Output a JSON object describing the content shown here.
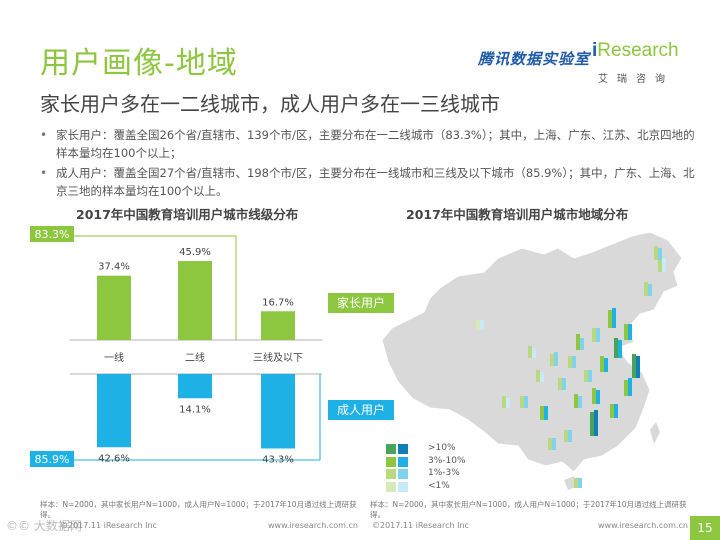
{
  "header": {
    "title": "用户画像-地域",
    "partner": "腾讯数据实验室",
    "brand_i": "i",
    "brand_rest": "Research",
    "brand_cn": "艾瑞咨询"
  },
  "subtitle": "家长用户多在一二线城市，成人用户多在一三线城市",
  "bullets": [
    "家长用户：覆盖全国26个省/直辖市、139个市/区，主要分布在一二线城市（83.3%）；其中，上海、广东、江苏、北京四地的样本量均在100个以上；",
    "成人用户：覆盖全国27个省/直辖市、198个市/区，主要分布在一线城市和三线及以下城市（85.9%）；其中，广东、上海、北京三地的样本量均在100个以上。"
  ],
  "colors": {
    "brand_green": "#8dc63f",
    "adult_blue": "#1eb1e6",
    "map_gray": "#d9d9d9",
    "legend": [
      "#4aa35b",
      "#8dc63f",
      "#b8d97e",
      "#d7e9b6"
    ],
    "legend_blue": [
      "#0f7fb8",
      "#1eb1e6",
      "#7fd3ef",
      "#c6eaf7"
    ]
  },
  "chart_data": [
    {
      "type": "bar",
      "title": "2017年中国教育培训用户城市线级分布",
      "categories": [
        "一线",
        "二线",
        "三线及以下"
      ],
      "series": [
        {
          "name": "家长用户",
          "values": [
            37.4,
            45.9,
            16.7
          ],
          "labels": [
            "37.4%",
            "45.9%",
            "16.7%"
          ]
        },
        {
          "name": "成人用户",
          "values": [
            42.6,
            14.1,
            43.3
          ],
          "labels": [
            "42.6%",
            "14.1%",
            "43.3%"
          ]
        }
      ],
      "bracket_labels": {
        "parent": "83.3%",
        "adult": "85.9%"
      },
      "ylabel": "",
      "xlabel": "",
      "ylim": [
        0,
        50
      ]
    },
    {
      "type": "map",
      "title": "2017年中国教育培训用户城市地域分布",
      "legend": [
        ">10%",
        "3%-10%",
        "1%-3%",
        "<1%"
      ],
      "series_tags": [
        "家长用户",
        "成人用户"
      ]
    }
  ],
  "notes": {
    "left": "样本：N=2000，其中家长用户N=1000，成人用户N=1000；于2017年10月通过线上调研获得。",
    "right": "样本：N=2000，其中家长用户N=1000，成人用户N=1000；于2017年10月通过线上调研获得。"
  },
  "footer": {
    "copyright_left": "©2017.11 iResearch Inc",
    "url_left": "www.iresearch.com.cn",
    "copyright_right": "©2017.11 iResearch Inc",
    "url_right": "www.iresearch.com.cn",
    "page": "15",
    "watermark": "©© 大数据网"
  }
}
